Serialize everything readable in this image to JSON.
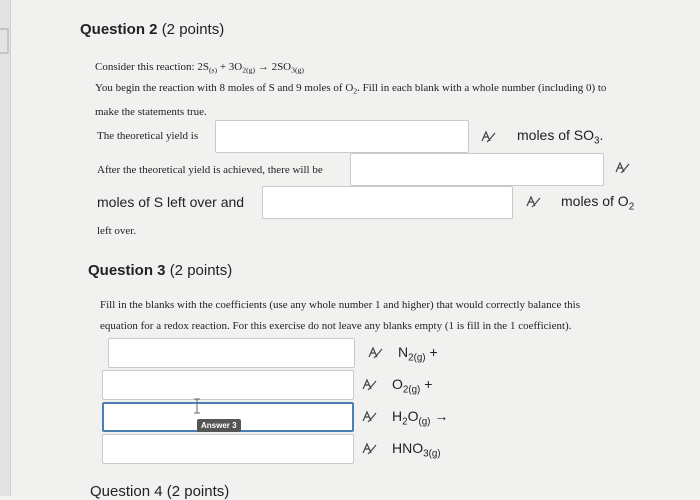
{
  "question2": {
    "title": "Question 2",
    "points": "(2 points)",
    "intro": "Consider this reaction:",
    "reaction": [
      "2S",
      "(s)",
      " + 3O",
      "2(g)",
      " → 2SO",
      "3(g)"
    ],
    "instructions": [
      "You begin the reaction with 8 moles of S and 9 moles of O",
      "2",
      ". Fill in each blank with a whole number (including 0) to",
      "make the statements true."
    ],
    "yield_prompt": "The theoretical yield is",
    "yield_unit": [
      "moles of SO",
      "3",
      "."
    ],
    "after_prompt": "After the theoretical yield is achieved, there will be",
    "s_left": "moles of S left over and",
    "o2_unit": [
      "moles of O",
      "2"
    ],
    "left_over": "left over."
  },
  "question3": {
    "title": "Question 3",
    "points": "(2 points)",
    "instructions": [
      "Fill in the blanks with the coefficients (use any whole number 1 and higher) that would correctly balance this",
      "equation for a redox reaction. For this exercise do not leave any blanks empty (1 is fill in the 1 coefficient)."
    ],
    "species": [
      [
        "N",
        "2(g)",
        " +"
      ],
      [
        "O",
        "2(g)",
        " +"
      ],
      [
        "H",
        "2",
        "O",
        "(g)",
        " →"
      ],
      [
        "HNO",
        "3(g)"
      ]
    ],
    "tooltip": "Answer 3"
  },
  "question4": {
    "title": "Question 4",
    "points": "(2 points)"
  }
}
